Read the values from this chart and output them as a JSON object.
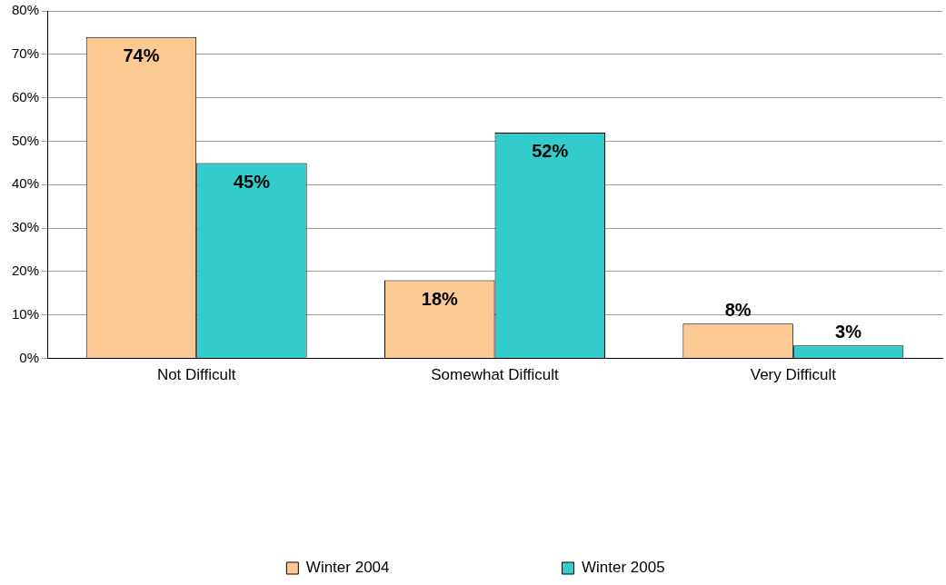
{
  "chart_data": {
    "type": "bar",
    "categories": [
      "Not Difficult",
      "Somewhat Difficult",
      "Very Difficult"
    ],
    "series": [
      {
        "name": "Winter 2004",
        "color": "#fcc993",
        "values": [
          74,
          18,
          8
        ],
        "value_labels": [
          "74%",
          "18%",
          "8%"
        ]
      },
      {
        "name": "Winter 2005",
        "color": "#33cccc",
        "values": [
          45,
          52,
          3
        ],
        "value_labels": [
          "45%",
          "52%",
          "3%"
        ]
      }
    ],
    "ylim": [
      0,
      80
    ],
    "yticks": [
      {
        "value": 0,
        "label": "0%"
      },
      {
        "value": 10,
        "label": "10%"
      },
      {
        "value": 20,
        "label": "20%"
      },
      {
        "value": 30,
        "label": "30%"
      },
      {
        "value": 40,
        "label": "40%"
      },
      {
        "value": 50,
        "label": "50%"
      },
      {
        "value": 60,
        "label": "60%"
      },
      {
        "value": 70,
        "label": "70%"
      },
      {
        "value": 80,
        "label": "80%"
      }
    ],
    "grid": "y",
    "legend": "bottom"
  }
}
